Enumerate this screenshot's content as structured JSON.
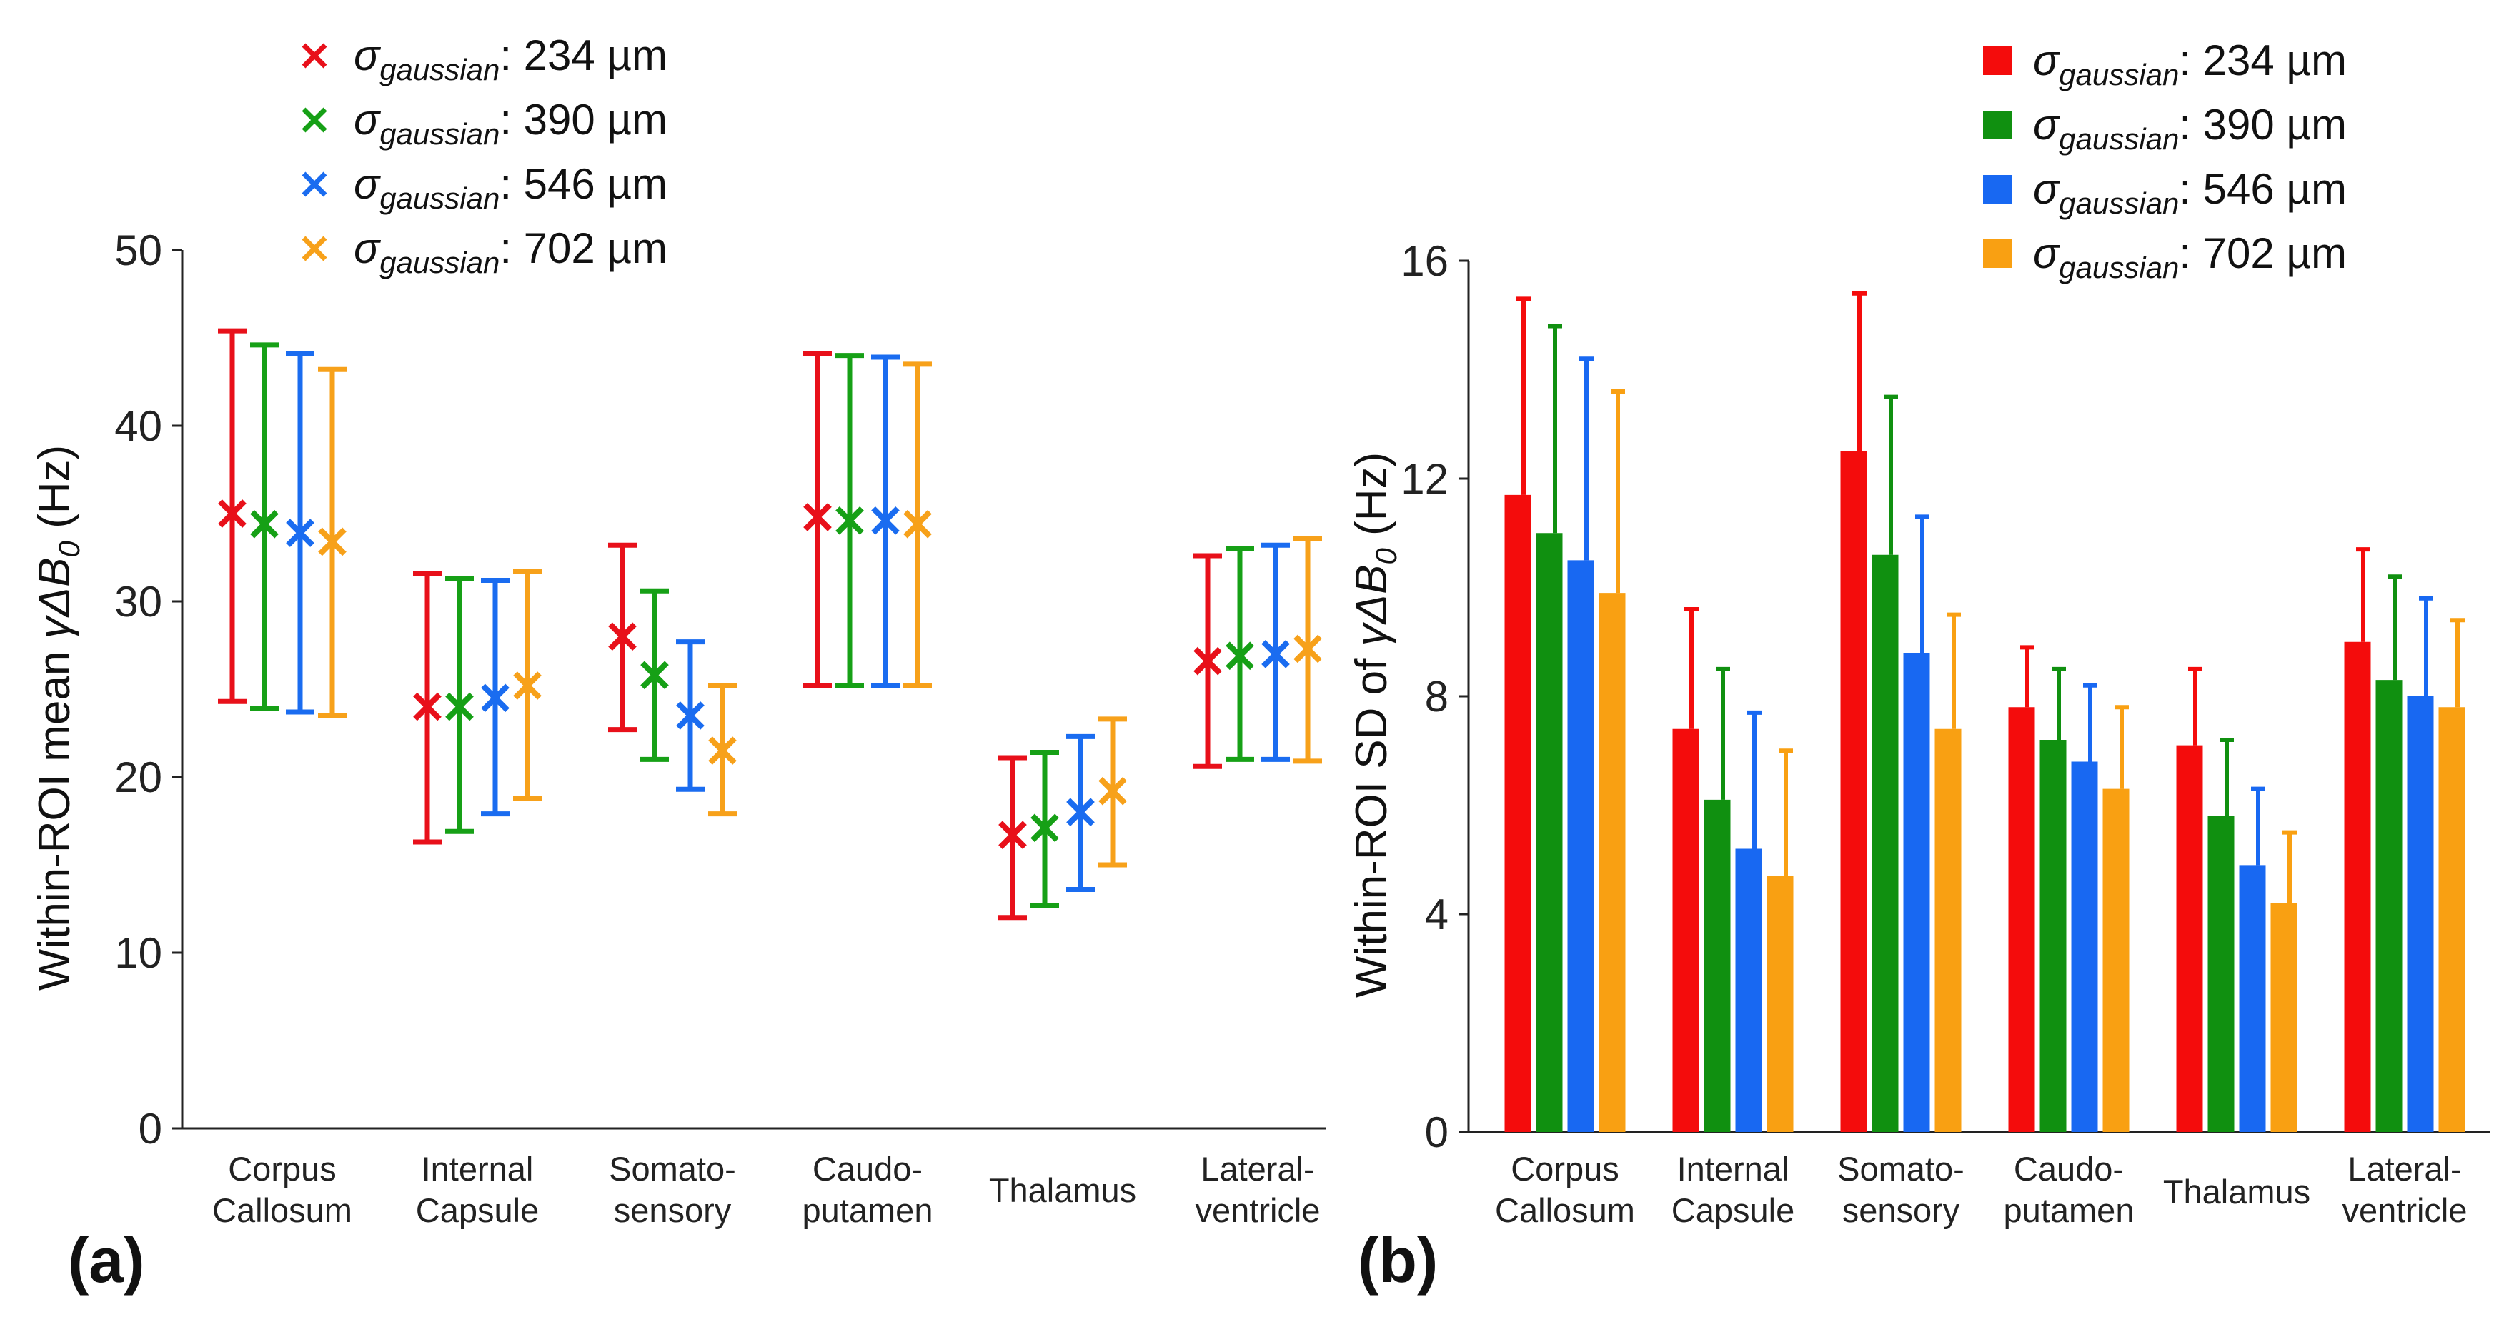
{
  "chart_data": [
    {
      "panel_label": "(a)",
      "type": "scatter",
      "marker": "x with error bars",
      "ylabel_prefix": "Within-ROI mean ",
      "ylabel_symbol": "γΔB",
      "ylabel_sub": "0",
      "ylabel_suffix": " (Hz)",
      "ylim": [
        0,
        50
      ],
      "yticks": [
        "0",
        "10",
        "20",
        "30",
        "40",
        "50"
      ],
      "categories": [
        [
          "Corpus",
          "Callosum"
        ],
        [
          "Internal",
          "Capsule"
        ],
        [
          "Somato-",
          "sensory"
        ],
        [
          "Caudo-",
          "putamen"
        ],
        [
          "Thalamus"
        ],
        [
          "Lateral-",
          "ventricle"
        ]
      ],
      "legend": [
        {
          "symbol": "σ",
          "sub": "gaussian",
          "value": ": 234 µm",
          "color": "#e8101a"
        },
        {
          "symbol": "σ",
          "sub": "gaussian",
          "value": ": 390 µm",
          "color": "#16a016"
        },
        {
          "symbol": "σ",
          "sub": "gaussian",
          "value": ": 546 µm",
          "color": "#1a6cf0"
        },
        {
          "symbol": "σ",
          "sub": "gaussian",
          "value": ": 702 µm",
          "color": "#f7a11a"
        }
      ],
      "series": [
        {
          "name": "σgaussian: 234 µm",
          "color": "#e8101a",
          "values": [
            35.0,
            24.0,
            28.0,
            34.8,
            16.7,
            26.6
          ],
          "lower": [
            24.3,
            16.3,
            22.7,
            25.2,
            12.0,
            20.6
          ],
          "upper": [
            45.4,
            31.6,
            33.2,
            44.1,
            21.1,
            32.6
          ]
        },
        {
          "name": "σgaussian: 390 µm",
          "color": "#16a016",
          "values": [
            34.4,
            24.0,
            25.8,
            34.6,
            17.1,
            26.9
          ],
          "lower": [
            23.9,
            16.9,
            21.0,
            25.2,
            12.7,
            21.0
          ],
          "upper": [
            44.6,
            31.3,
            30.6,
            44.0,
            21.4,
            33.0
          ]
        },
        {
          "name": "σgaussian: 546 µm",
          "color": "#1a6cf0",
          "values": [
            33.9,
            24.5,
            23.5,
            34.6,
            18.0,
            27.0
          ],
          "lower": [
            23.7,
            17.9,
            19.3,
            25.2,
            13.6,
            21.0
          ],
          "upper": [
            44.1,
            31.2,
            27.7,
            43.9,
            22.3,
            33.2
          ]
        },
        {
          "name": "σgaussian: 702 µm",
          "color": "#f7a11a",
          "values": [
            33.4,
            25.2,
            21.5,
            34.4,
            19.2,
            27.3
          ],
          "lower": [
            23.5,
            18.8,
            17.9,
            25.2,
            15.0,
            20.9
          ],
          "upper": [
            43.2,
            31.7,
            25.2,
            43.5,
            23.3,
            33.6
          ]
        }
      ]
    },
    {
      "panel_label": "(b)",
      "type": "bar",
      "ylabel_prefix": "Within-ROI SD of ",
      "ylabel_symbol": "γΔB",
      "ylabel_sub": "0",
      "ylabel_suffix": " (Hz)",
      "ylim": [
        0,
        16
      ],
      "yticks": [
        "0",
        "4",
        "8",
        "12",
        "16"
      ],
      "categories": [
        [
          "Corpus",
          "Callosum"
        ],
        [
          "Internal",
          "Capsule"
        ],
        [
          "Somato-",
          "sensory"
        ],
        [
          "Caudo-",
          "putamen"
        ],
        [
          "Thalamus"
        ],
        [
          "Lateral-",
          "ventricle"
        ]
      ],
      "legend": [
        {
          "symbol": "σ",
          "sub": "gaussian",
          "value": ": 234 µm",
          "color": "#f40c0c"
        },
        {
          "symbol": "σ",
          "sub": "gaussian",
          "value": ": 390 µm",
          "color": "#109010"
        },
        {
          "symbol": "σ",
          "sub": "gaussian",
          "value": ": 546 µm",
          "color": "#1868f2"
        },
        {
          "symbol": "σ",
          "sub": "gaussian",
          "value": ": 702 µm",
          "color": "#f9a012"
        }
      ],
      "series": [
        {
          "name": "σgaussian: 234 µm",
          "color": "#f40c0c",
          "values": [
            11.7,
            7.4,
            12.5,
            7.8,
            7.1,
            9.0
          ],
          "err_upper": [
            15.3,
            9.6,
            15.4,
            8.9,
            8.5,
            10.7
          ]
        },
        {
          "name": "σgaussian: 390 µm",
          "color": "#109010",
          "values": [
            11.0,
            6.1,
            10.6,
            7.2,
            5.8,
            8.3
          ],
          "err_upper": [
            14.8,
            8.5,
            13.5,
            8.5,
            7.2,
            10.2
          ]
        },
        {
          "name": "σgaussian: 546 µm",
          "color": "#1868f2",
          "values": [
            10.5,
            5.2,
            8.8,
            6.8,
            4.9,
            8.0
          ],
          "err_upper": [
            14.2,
            7.7,
            11.3,
            8.2,
            6.3,
            9.8
          ]
        },
        {
          "name": "σgaussian: 702 µm",
          "color": "#f9a012",
          "values": [
            9.9,
            4.7,
            7.4,
            6.3,
            4.2,
            7.8
          ],
          "err_upper": [
            13.6,
            7.0,
            9.5,
            7.8,
            5.5,
            9.4
          ]
        }
      ]
    }
  ]
}
